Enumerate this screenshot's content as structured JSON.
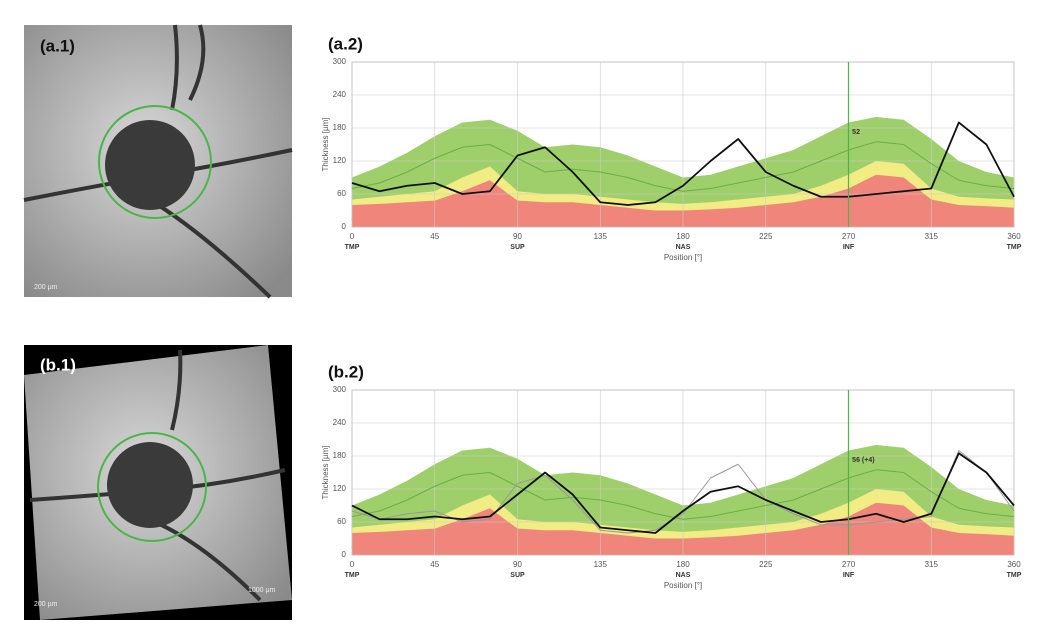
{
  "panels": [
    {
      "label": "(a.1)",
      "scale_text": "200 µm"
    },
    {
      "label": "(b.1)",
      "scale_text": "200 µm",
      "scale_text_2": "1000 µm"
    }
  ],
  "chart_data": [
    {
      "type": "line",
      "title": "(a.2)",
      "ylabel": "Thickness [µm]",
      "xlabel": "Position [°]",
      "xlim": [
        0,
        360
      ],
      "xticks": [
        0,
        45,
        90,
        135,
        180,
        225,
        270,
        315,
        360
      ],
      "sector_ticks": [
        {
          "value": 0,
          "label": "TMP"
        },
        {
          "value": 90,
          "label": "SUP"
        },
        {
          "value": 180,
          "label": "NAS"
        },
        {
          "value": 270,
          "label": "INF"
        },
        {
          "value": 360,
          "label": "TMP"
        }
      ],
      "ylim": [
        0,
        300
      ],
      "yticks": [
        0,
        60,
        120,
        180,
        240,
        300
      ],
      "grid": true,
      "marker_x": 270,
      "annotation": {
        "text": "52",
        "x": 272,
        "y": 172
      },
      "x": [
        0,
        15,
        30,
        45,
        60,
        75,
        90,
        105,
        120,
        135,
        150,
        165,
        180,
        195,
        210,
        225,
        240,
        255,
        270,
        285,
        300,
        315,
        330,
        345,
        360
      ],
      "series": [
        {
          "style": "area",
          "color": "#9fcf6a",
          "values": [
            90,
            110,
            135,
            165,
            190,
            195,
            175,
            145,
            150,
            145,
            130,
            110,
            90,
            95,
            110,
            125,
            140,
            165,
            190,
            200,
            195,
            160,
            120,
            100,
            90
          ]
        },
        {
          "style": "area",
          "color": "#f2ec84",
          "values": [
            50,
            55,
            60,
            65,
            90,
            110,
            65,
            60,
            60,
            55,
            50,
            45,
            42,
            45,
            50,
            55,
            60,
            75,
            95,
            120,
            115,
            70,
            55,
            52,
            50
          ]
        },
        {
          "style": "area",
          "color": "#f0857b",
          "values": [
            40,
            42,
            45,
            48,
            65,
            85,
            48,
            45,
            45,
            40,
            35,
            30,
            30,
            32,
            35,
            40,
            45,
            55,
            70,
            95,
            90,
            50,
            40,
            38,
            35
          ]
        },
        {
          "style": "line",
          "color": "#6aae4a",
          "width": 1,
          "values": [
            70,
            80,
            100,
            125,
            145,
            150,
            125,
            100,
            105,
            100,
            90,
            75,
            65,
            70,
            80,
            90,
            100,
            120,
            140,
            155,
            150,
            115,
            85,
            75,
            70
          ]
        },
        {
          "style": "line",
          "color": "#111111",
          "width": 1.8,
          "values": [
            80,
            65,
            75,
            80,
            60,
            65,
            130,
            145,
            100,
            45,
            40,
            45,
            75,
            120,
            160,
            100,
            75,
            55,
            55,
            60,
            65,
            70,
            190,
            150,
            55
          ]
        }
      ]
    },
    {
      "type": "line",
      "title": "(b.2)",
      "ylabel": "Thickness [µm]",
      "xlabel": "Position [°]",
      "xlim": [
        0,
        360
      ],
      "xticks": [
        0,
        45,
        90,
        135,
        180,
        225,
        270,
        315,
        360
      ],
      "sector_ticks": [
        {
          "value": 0,
          "label": "TMP"
        },
        {
          "value": 90,
          "label": "SUP"
        },
        {
          "value": 180,
          "label": "NAS"
        },
        {
          "value": 270,
          "label": "INF"
        },
        {
          "value": 360,
          "label": "TMP"
        }
      ],
      "ylim": [
        0,
        300
      ],
      "yticks": [
        0,
        60,
        120,
        180,
        240,
        300
      ],
      "grid": true,
      "marker_x": 270,
      "annotation": {
        "text": "56 (+4)",
        "x": 272,
        "y": 172
      },
      "x": [
        0,
        15,
        30,
        45,
        60,
        75,
        90,
        105,
        120,
        135,
        150,
        165,
        180,
        195,
        210,
        225,
        240,
        255,
        270,
        285,
        300,
        315,
        330,
        345,
        360
      ],
      "series": [
        {
          "style": "area",
          "color": "#9fcf6a",
          "values": [
            90,
            110,
            135,
            165,
            190,
            195,
            175,
            145,
            150,
            145,
            130,
            110,
            90,
            95,
            110,
            125,
            140,
            165,
            190,
            200,
            195,
            160,
            120,
            100,
            90
          ]
        },
        {
          "style": "area",
          "color": "#f2ec84",
          "values": [
            50,
            55,
            60,
            65,
            90,
            110,
            65,
            60,
            60,
            55,
            50,
            45,
            42,
            45,
            50,
            55,
            60,
            75,
            95,
            120,
            115,
            70,
            55,
            52,
            50
          ]
        },
        {
          "style": "area",
          "color": "#f0857b",
          "values": [
            40,
            42,
            45,
            48,
            65,
            85,
            48,
            45,
            45,
            40,
            35,
            30,
            30,
            32,
            35,
            40,
            45,
            55,
            70,
            95,
            90,
            50,
            40,
            38,
            35
          ]
        },
        {
          "style": "line",
          "color": "#6aae4a",
          "width": 1,
          "values": [
            70,
            80,
            100,
            125,
            145,
            150,
            125,
            100,
            105,
            100,
            90,
            75,
            65,
            70,
            80,
            90,
            100,
            120,
            140,
            155,
            150,
            115,
            85,
            75,
            70
          ]
        },
        {
          "style": "line",
          "color": "#999999",
          "width": 1,
          "values": [
            80,
            65,
            75,
            80,
            60,
            65,
            130,
            145,
            100,
            45,
            40,
            45,
            75,
            140,
            165,
            100,
            75,
            55,
            55,
            60,
            65,
            70,
            190,
            150,
            80
          ]
        },
        {
          "style": "line",
          "color": "#111111",
          "width": 1.8,
          "values": [
            90,
            65,
            65,
            70,
            65,
            70,
            110,
            150,
            110,
            50,
            45,
            40,
            80,
            115,
            125,
            100,
            80,
            60,
            65,
            75,
            60,
            75,
            185,
            150,
            90
          ]
        }
      ]
    }
  ]
}
